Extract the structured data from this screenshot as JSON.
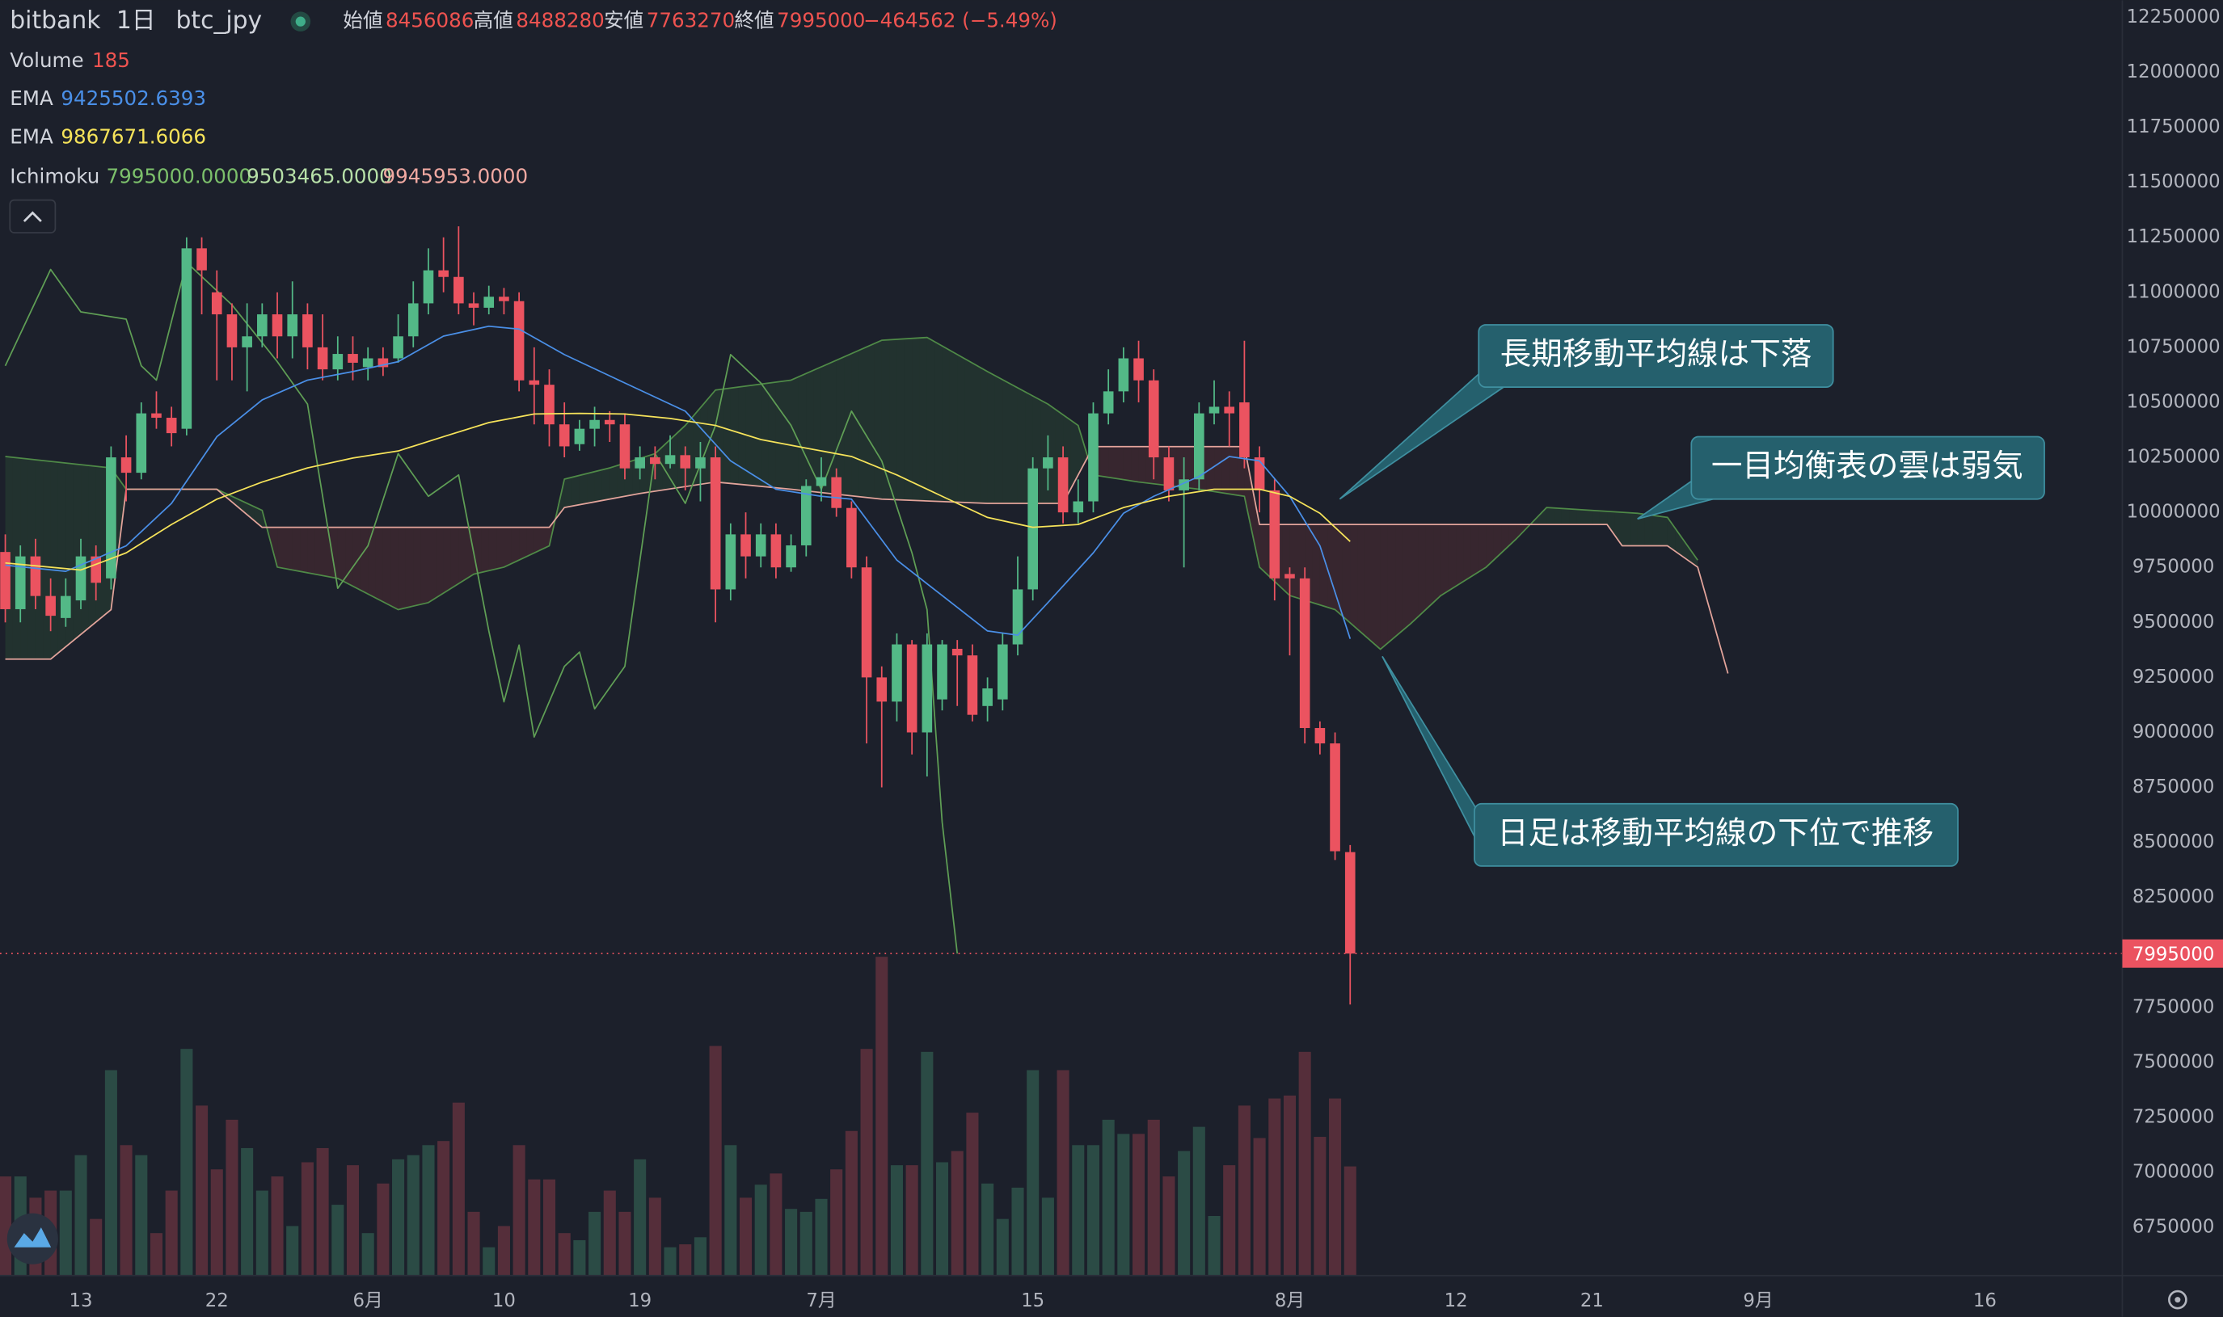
{
  "header": {
    "exchange": "bitbank",
    "interval": "1日",
    "symbol": "btc_jpy",
    "labels": [
      "始値",
      "高値",
      "安値",
      "終値"
    ],
    "change": "−464562 (−5.49%)"
  },
  "chart_data": {
    "type": "candlestick",
    "x": [
      -5,
      -4,
      -3,
      -2,
      -1,
      0,
      1,
      2,
      3,
      4,
      5,
      6,
      7,
      8,
      9,
      10,
      11,
      12,
      13,
      14,
      15,
      16,
      17,
      18,
      19,
      20,
      21,
      22,
      23,
      24,
      25,
      26,
      27,
      28,
      29,
      30,
      31,
      32,
      33,
      34,
      35,
      36,
      37,
      38,
      39,
      40,
      41,
      42,
      43,
      44,
      45,
      46,
      47,
      48,
      49,
      50,
      51,
      52,
      53,
      54,
      55,
      56,
      57,
      58,
      59,
      60,
      61,
      62,
      63,
      64,
      65,
      66,
      67,
      68,
      69,
      70,
      71,
      72,
      73,
      74,
      75,
      76,
      77,
      78,
      79,
      80,
      81,
      82,
      83,
      84
    ],
    "open": [
      9820000,
      9560000,
      9800000,
      9620000,
      9520000,
      9600000,
      9800000,
      9700000,
      10250000,
      10180000,
      10450000,
      10430000,
      10380000,
      11200000,
      11000000,
      10900000,
      10750000,
      10800000,
      10900000,
      10800000,
      10900000,
      10750000,
      10650000,
      10720000,
      10660000,
      10700000,
      10700000,
      10800000,
      10950000,
      11100000,
      11070000,
      10950000,
      10930000,
      10980000,
      10960000,
      10600000,
      10580000,
      10400000,
      10310000,
      10380000,
      10420000,
      10400000,
      10200000,
      10250000,
      10220000,
      10260000,
      10200000,
      10250000,
      9650000,
      9900000,
      9800000,
      9900000,
      9750000,
      9850000,
      10120000,
      10160000,
      10020000,
      9750000,
      9250000,
      9140000,
      9400000,
      9000000,
      9150000,
      9380000,
      9350000,
      9120000,
      9150000,
      9400000,
      9650000,
      10200000,
      10250000,
      10000000,
      10050000,
      10450000,
      10550000,
      10700000,
      10600000,
      10250000,
      10100000,
      10150000,
      10450000,
      10480000,
      10500000,
      10250000,
      10100000,
      9720000,
      9700000,
      9020000,
      8950000,
      8456086
    ],
    "close": [
      9560000,
      9800000,
      9620000,
      9530000,
      9620000,
      9800000,
      9680000,
      10250000,
      10180000,
      10450000,
      10430000,
      10360000,
      11200000,
      11100000,
      10900000,
      10750000,
      10800000,
      10900000,
      10800000,
      10900000,
      10750000,
      10650000,
      10720000,
      10680000,
      10700000,
      10660000,
      10800000,
      10950000,
      11100000,
      11070000,
      10950000,
      10930000,
      10980000,
      10960000,
      10600000,
      10580000,
      10400000,
      10300000,
      10380000,
      10420000,
      10400000,
      10200000,
      10250000,
      10220000,
      10260000,
      10200000,
      10250000,
      9650000,
      9900000,
      9800000,
      9900000,
      9750000,
      9850000,
      10120000,
      10160000,
      10020000,
      9750000,
      9250000,
      9140000,
      9400000,
      9000000,
      9400000,
      9400000,
      9350000,
      9080000,
      9200000,
      9400000,
      9650000,
      10200000,
      10250000,
      10000000,
      10050000,
      10450000,
      10550000,
      10700000,
      10600000,
      10250000,
      10100000,
      10150000,
      10450000,
      10480000,
      10450000,
      10250000,
      10100000,
      9700000,
      9700000,
      9020000,
      8950000,
      8460000,
      7995000
    ],
    "high": [
      9900000,
      9850000,
      9880000,
      9700000,
      9700000,
      9880000,
      9850000,
      10300000,
      10350000,
      10500000,
      10550000,
      10480000,
      11250000,
      11250000,
      11100000,
      10950000,
      10950000,
      10950000,
      11000000,
      11050000,
      10950000,
      10900000,
      10800000,
      10800000,
      10750000,
      10750000,
      10900000,
      11050000,
      11200000,
      11250000,
      11300000,
      11000000,
      11030000,
      11020000,
      11000000,
      10750000,
      10650000,
      10500000,
      10420000,
      10480000,
      10460000,
      10450000,
      10300000,
      10300000,
      10350000,
      10300000,
      10320000,
      10300000,
      9950000,
      10000000,
      9950000,
      9950000,
      9900000,
      10150000,
      10250000,
      10200000,
      10050000,
      9800000,
      9300000,
      9450000,
      9420000,
      9450000,
      9420000,
      9420000,
      9400000,
      9250000,
      9450000,
      9800000,
      10250000,
      10350000,
      10300000,
      10150000,
      10500000,
      10650000,
      10750000,
      10780000,
      10650000,
      10300000,
      10250000,
      10500000,
      10600000,
      10550000,
      10780000,
      10300000,
      10150000,
      9750000,
      9750000,
      9050000,
      9000000,
      8488280
    ],
    "low": [
      9500000,
      9500000,
      9560000,
      9460000,
      9480000,
      9560000,
      9600000,
      9650000,
      10050000,
      10150000,
      10380000,
      10300000,
      10350000,
      10900000,
      10600000,
      10600000,
      10550000,
      10750000,
      10700000,
      10700000,
      10650000,
      10600000,
      10600000,
      10600000,
      10600000,
      10620000,
      10680000,
      10750000,
      10900000,
      11000000,
      10900000,
      10850000,
      10900000,
      10900000,
      10550000,
      10400000,
      10300000,
      10250000,
      10280000,
      10300000,
      10320000,
      10150000,
      10150000,
      10150000,
      10200000,
      10100000,
      10050000,
      9500000,
      9600000,
      9700000,
      9750000,
      9700000,
      9730000,
      9800000,
      10050000,
      9980000,
      9700000,
      8950000,
      8750000,
      9050000,
      8900000,
      8800000,
      9100000,
      9120000,
      9050000,
      9050000,
      9100000,
      9350000,
      9600000,
      10100000,
      9950000,
      9950000,
      10000000,
      10400000,
      10500000,
      10500000,
      10150000,
      10050000,
      9750000,
      10100000,
      10400000,
      10300000,
      10200000,
      10000000,
      9600000,
      9350000,
      8950000,
      8900000,
      8420000,
      7763270
    ],
    "up_color": "#53b987",
    "down_color": "#eb5360",
    "volume": {
      "name": "Volume",
      "values": [
        168,
        168,
        132,
        144,
        144,
        204,
        96,
        348,
        221,
        204,
        72,
        144,
        384,
        288,
        180,
        264,
        216,
        144,
        168,
        84,
        192,
        216,
        120,
        187,
        72,
        156,
        197,
        204,
        221,
        228,
        293,
        108,
        48,
        84,
        221,
        163,
        163,
        72,
        60,
        108,
        144,
        108,
        197,
        132,
        48,
        53,
        65,
        389,
        221,
        132,
        154,
        173,
        113,
        108,
        130,
        180,
        245,
        384,
        540,
        187,
        187,
        379,
        192,
        211,
        276,
        156,
        96,
        149,
        348,
        132,
        348,
        221,
        221,
        264,
        240,
        240,
        264,
        168,
        211,
        252,
        101,
        187,
        288,
        233,
        300,
        305,
        379,
        235,
        300,
        185
      ]
    },
    "series": [
      {
        "name": "EMA",
        "color": "#4a8fe7",
        "x": [
          -5,
          -1,
          3,
          6,
          9,
          12,
          15,
          18,
          21,
          24,
          27,
          29,
          32,
          36,
          40,
          43,
          46,
          49,
          51,
          54,
          57,
          60,
          62,
          64,
          67,
          69,
          71,
          74,
          76,
          78,
          80,
          82,
          84
        ],
        "values": [
          9760000,
          9732000,
          9848000,
          10041000,
          10344000,
          10511000,
          10601000,
          10640000,
          10685000,
          10801000,
          10846000,
          10833000,
          10717000,
          10588000,
          10460000,
          10234000,
          10105000,
          10073000,
          10060000,
          9783000,
          9622000,
          9461000,
          9442000,
          9590000,
          9816000,
          9996000,
          10073000,
          10163000,
          10254000,
          10234000,
          10073000,
          9848000,
          9425502.6393
        ]
      },
      {
        "name": "EMA",
        "color": "#f6e35a",
        "x": [
          -5,
          0,
          3,
          6,
          9,
          12,
          15,
          18,
          21,
          24,
          27,
          30,
          33,
          36,
          39,
          42,
          45,
          48,
          51,
          54,
          57,
          60,
          63,
          66,
          69,
          72,
          75,
          78,
          80,
          82,
          84
        ],
        "values": [
          9770000,
          9738000,
          9816000,
          9945000,
          10060000,
          10138000,
          10202000,
          10247000,
          10279000,
          10344000,
          10408000,
          10447000,
          10450000,
          10447000,
          10427000,
          10395000,
          10331000,
          10292000,
          10254000,
          10170000,
          10073000,
          9977000,
          9932000,
          9945000,
          10022000,
          10073000,
          10105000,
          10105000,
          10073000,
          9996000,
          9867671.6066
        ]
      }
    ],
    "ichimoku": {
      "name": "Ichimoku",
      "readout": [
        "7995000.0000",
        "9503465.0000",
        "9945953.0000"
      ],
      "lagging": {
        "color": "#5f9e55",
        "x": [
          -5,
          -2,
          0,
          3,
          4,
          5,
          7,
          10,
          13,
          15,
          17,
          19,
          21,
          23,
          25,
          27,
          28,
          29,
          30,
          32,
          33,
          34,
          36,
          38,
          40,
          42,
          43,
          45,
          47,
          49,
          51,
          53,
          55,
          56,
          57,
          58
        ],
        "values": [
          10666000,
          11104000,
          10911000,
          10878000,
          10666000,
          10601000,
          11136000,
          10943000,
          10685000,
          10492000,
          9655000,
          9848000,
          10267000,
          10073000,
          10170000,
          9461000,
          9139000,
          9397000,
          8979000,
          9300000,
          9365000,
          9107000,
          9300000,
          10267000,
          10041000,
          10395000,
          10717000,
          10588000,
          10395000,
          10105000,
          10460000,
          10234000,
          9816000,
          9558000,
          8592000,
          7995000
        ]
      },
      "span_a": {
        "color": "#4f8a47",
        "x": [
          -5,
          2,
          3,
          9,
          12,
          13,
          17,
          21,
          23,
          26,
          28,
          31,
          32,
          35,
          38,
          40,
          42,
          47,
          53,
          56,
          60,
          64,
          66,
          67,
          70,
          74,
          77,
          78,
          80,
          83,
          86,
          88,
          90,
          93,
          95,
          97,
          103,
          105,
          107
        ],
        "values": [
          10254000,
          10202000,
          10105000,
          10105000,
          10009000,
          9751000,
          9700000,
          9558000,
          9590000,
          9719000,
          9751000,
          9848000,
          10151000,
          10202000,
          10267000,
          10395000,
          10556000,
          10601000,
          10782000,
          10795000,
          10640000,
          10492000,
          10395000,
          10170000,
          10138000,
          10105000,
          10073000,
          9751000,
          9622000,
          9558000,
          9378000,
          9494000,
          9622000,
          9751000,
          9880000,
          10022000,
          9996000,
          9977000,
          9783000
        ]
      },
      "span_b": {
        "color": "#e3a49b",
        "x": [
          -5,
          -2,
          2,
          3,
          9,
          12,
          31,
          32,
          37,
          42,
          47,
          53,
          60,
          65,
          67,
          77,
          78,
          101,
          102,
          105,
          107,
          109
        ],
        "values": [
          9333000,
          9333000,
          9558000,
          10105000,
          10105000,
          9932000,
          9932000,
          10022000,
          10086000,
          10138000,
          10105000,
          10060000,
          10041000,
          10041000,
          10299000,
          10299000,
          9945000,
          9945000,
          9848000,
          9848000,
          9751000,
          9268000
        ]
      },
      "cloud_colors": [
        "rgba(76,175,80,0.13)",
        "rgba(239,83,80,0.13)"
      ]
    },
    "xlim": [
      -5.35,
      135.1
    ],
    "xticks": [
      {
        "value": 0,
        "label": "13"
      },
      {
        "value": 9,
        "label": "22"
      },
      {
        "value": 19,
        "label": "6月"
      },
      {
        "value": 28,
        "label": "10"
      },
      {
        "value": 37,
        "label": "19"
      },
      {
        "value": 49,
        "label": "7月"
      },
      {
        "value": 63,
        "label": "15"
      },
      {
        "value": 80,
        "label": "8月"
      },
      {
        "value": 91,
        "label": "12"
      },
      {
        "value": 100,
        "label": "21"
      },
      {
        "value": 111,
        "label": "9月"
      },
      {
        "value": 126,
        "label": "16"
      }
    ],
    "ylim": [
      6531280,
      12327280
    ],
    "yticks": [
      6750000,
      7000000,
      7250000,
      7500000,
      7750000,
      8000000,
      8250000,
      8500000,
      8750000,
      9000000,
      9250000,
      9500000,
      9750000,
      10000000,
      10250000,
      10500000,
      10750000,
      11000000,
      11250000,
      11500000,
      11750000,
      12000000,
      12250000
    ],
    "grid": false,
    "annotations": [
      "長期移動平均線は下落",
      "一目均衡表の雲は弱気",
      "日足は移動平均線の下位で推移"
    ]
  }
}
